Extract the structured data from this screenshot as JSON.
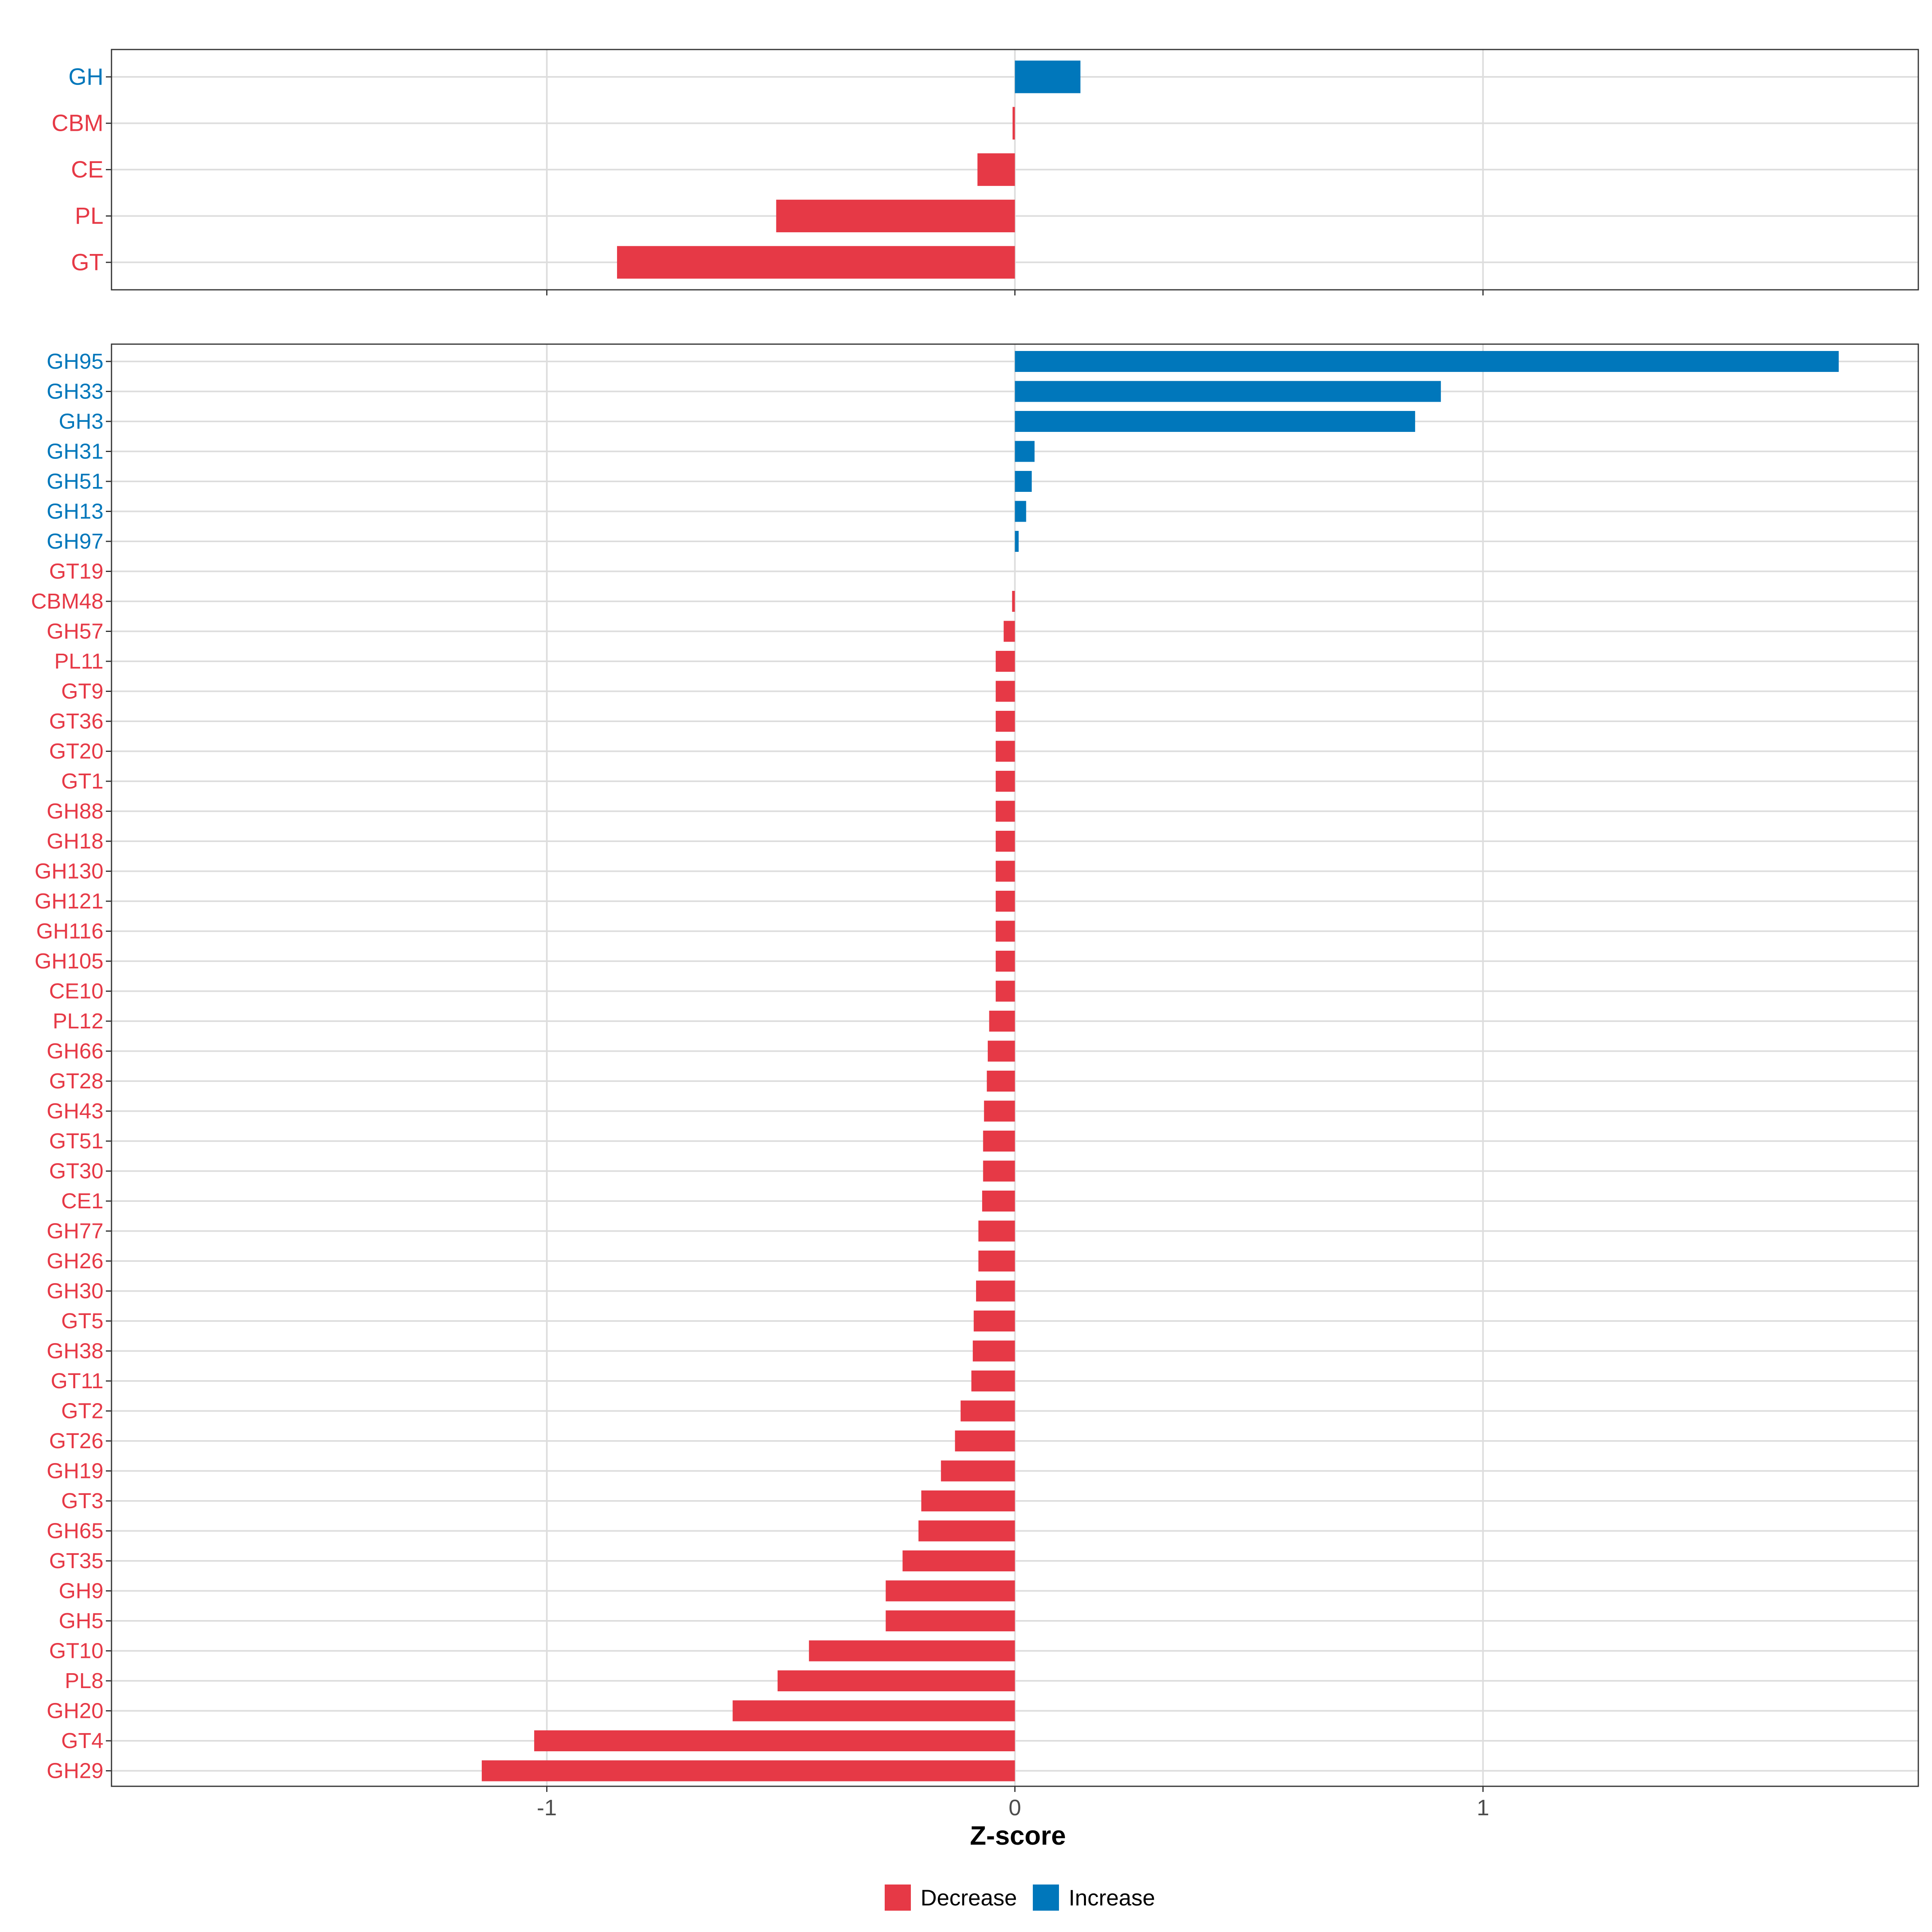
{
  "colors": {
    "decrease": "#E63946",
    "increase": "#0077BB",
    "grid": "#DDDDDD",
    "axis_text": "#4D4D4D",
    "panel_border": "#333333"
  },
  "chart_data": [
    {
      "type": "bar",
      "orientation": "horizontal",
      "panel": "top",
      "xlim": [
        -1.93,
        1.93
      ],
      "x_ticks": [
        -1,
        0,
        1
      ],
      "categories": [
        "GH",
        "CBM",
        "CE",
        "PL",
        "GT"
      ],
      "values": [
        0.14,
        -0.005,
        -0.08,
        -0.51,
        -0.85
      ],
      "directions": [
        "Increase",
        "Decrease",
        "Decrease",
        "Decrease",
        "Decrease"
      ]
    },
    {
      "type": "bar",
      "orientation": "horizontal",
      "panel": "bottom",
      "xlim": [
        -1.93,
        1.93
      ],
      "x_ticks": [
        -1,
        0,
        1
      ],
      "x_tick_labels": [
        "-1",
        "0",
        "1"
      ],
      "xlabel": "Z-score",
      "categories": [
        "GH95",
        "GH33",
        "GH3",
        "GH31",
        "GH51",
        "GH13",
        "GH97",
        "GT19",
        "CBM48",
        "GH57",
        "PL11",
        "GT9",
        "GT36",
        "GT20",
        "GT1",
        "GH88",
        "GH18",
        "GH130",
        "GH121",
        "GH116",
        "GH105",
        "CE10",
        "PL12",
        "GH66",
        "GT28",
        "GH43",
        "GT51",
        "GT30",
        "CE1",
        "GH77",
        "GH26",
        "GH30",
        "GT5",
        "GH38",
        "GT11",
        "GT2",
        "GT26",
        "GH19",
        "GT3",
        "GH65",
        "GT35",
        "GH9",
        "GH5",
        "GT10",
        "PL8",
        "GH20",
        "GT4",
        "GH29"
      ],
      "values": [
        1.76,
        0.91,
        0.855,
        0.042,
        0.036,
        0.024,
        0.008,
        0.0,
        -0.006,
        -0.024,
        -0.041,
        -0.041,
        -0.041,
        -0.041,
        -0.041,
        -0.041,
        -0.041,
        -0.041,
        -0.041,
        -0.041,
        -0.041,
        -0.041,
        -0.055,
        -0.058,
        -0.06,
        -0.066,
        -0.068,
        -0.068,
        -0.07,
        -0.078,
        -0.078,
        -0.083,
        -0.088,
        -0.09,
        -0.093,
        -0.116,
        -0.128,
        -0.158,
        -0.2,
        -0.206,
        -0.24,
        -0.276,
        -0.276,
        -0.44,
        -0.507,
        -0.603,
        -1.027,
        -1.139
      ],
      "directions": [
        "Increase",
        "Increase",
        "Increase",
        "Increase",
        "Increase",
        "Increase",
        "Increase",
        "Decrease",
        "Decrease",
        "Decrease",
        "Decrease",
        "Decrease",
        "Decrease",
        "Decrease",
        "Decrease",
        "Decrease",
        "Decrease",
        "Decrease",
        "Decrease",
        "Decrease",
        "Decrease",
        "Decrease",
        "Decrease",
        "Decrease",
        "Decrease",
        "Decrease",
        "Decrease",
        "Decrease",
        "Decrease",
        "Decrease",
        "Decrease",
        "Decrease",
        "Decrease",
        "Decrease",
        "Decrease",
        "Decrease",
        "Decrease",
        "Decrease",
        "Decrease",
        "Decrease",
        "Decrease",
        "Decrease",
        "Decrease",
        "Decrease",
        "Decrease",
        "Decrease",
        "Decrease",
        "Decrease"
      ]
    }
  ],
  "legend": {
    "position": "bottom",
    "items": [
      {
        "label": "Decrease",
        "color": "#E63946"
      },
      {
        "label": "Increase",
        "color": "#0077BB"
      }
    ]
  }
}
